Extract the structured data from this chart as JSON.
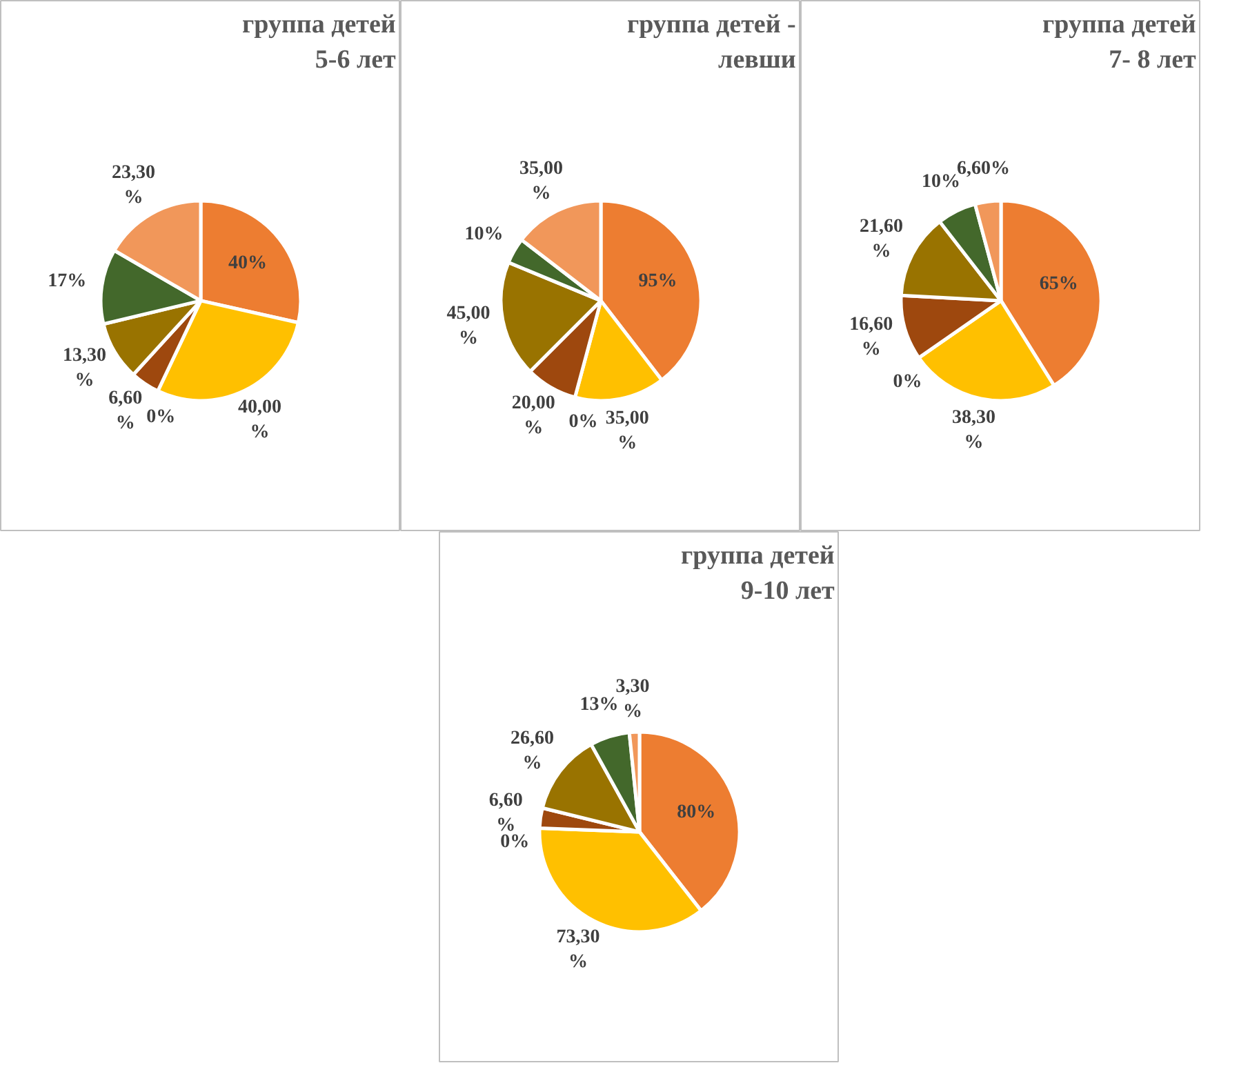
{
  "chart_data": [
    {
      "type": "pie",
      "title": "группа детей 5-6 лет",
      "categories": [
        null,
        null,
        null,
        null,
        null,
        null,
        null
      ],
      "values": [
        40,
        40,
        0,
        6.6,
        13.3,
        17,
        23.3
      ],
      "value_labels": [
        "40%",
        "40,00 %",
        "0%",
        "6,60 %",
        "13,30 %",
        "17%",
        "23,30 %"
      ],
      "colors": [
        "#ed7d31",
        "#ffc000",
        "#a5a5a5",
        "#9e480e",
        "#997300",
        "#43682b",
        "#f1975a"
      ]
    },
    {
      "type": "pie",
      "title": "группа детей - левши",
      "categories": [
        null,
        null,
        null,
        null,
        null,
        null,
        null
      ],
      "values": [
        95,
        35,
        0,
        20,
        45,
        10,
        35
      ],
      "value_labels": [
        "95%",
        "35,00 %",
        "0%",
        "20,00 %",
        "45,00 %",
        "10%",
        "35,00 %"
      ],
      "colors": [
        "#ed7d31",
        "#ffc000",
        "#a5a5a5",
        "#9e480e",
        "#997300",
        "#43682b",
        "#f1975a"
      ]
    },
    {
      "type": "pie",
      "title": "группа детей 7- 8 лет",
      "categories": [
        null,
        null,
        null,
        null,
        null,
        null,
        null
      ],
      "values": [
        65,
        38.3,
        0,
        16.6,
        21.6,
        10,
        6.6
      ],
      "value_labels": [
        "65%",
        "38,30 %",
        "0%",
        "16,60 %",
        "21,60 %",
        "10%",
        "6,60%"
      ],
      "colors": [
        "#ed7d31",
        "#ffc000",
        "#a5a5a5",
        "#9e480e",
        "#997300",
        "#43682b",
        "#f1975a"
      ]
    },
    {
      "type": "pie",
      "title": "группа детей 9-10 лет",
      "categories": [
        null,
        null,
        null,
        null,
        null,
        null,
        null
      ],
      "values": [
        80,
        73.3,
        0,
        6.6,
        26.6,
        13,
        3.3
      ],
      "value_labels": [
        "80%",
        "73,30 %",
        "0%",
        "6,60 %",
        "26,60 %",
        "13%",
        "3,30 %"
      ],
      "colors": [
        "#ed7d31",
        "#ffc000",
        "#a5a5a5",
        "#9e480e",
        "#997300",
        "#43682b",
        "#f1975a"
      ]
    }
  ]
}
